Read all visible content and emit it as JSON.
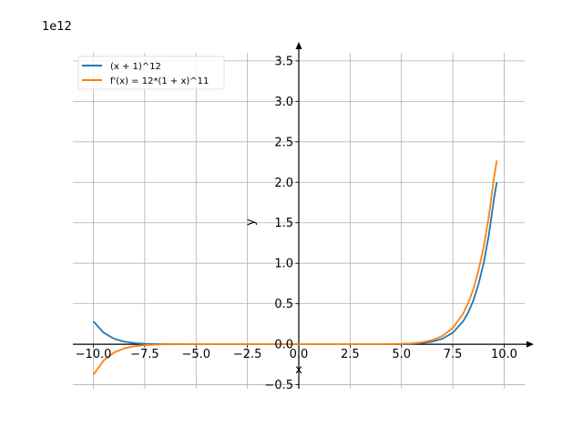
{
  "chart_data": {
    "type": "line",
    "xlabel": "x",
    "ylabel": "y",
    "offset_text": "1e12",
    "y_scale_factor": 1000000000000.0,
    "xlim": [
      -11.0,
      11.0
    ],
    "ylim": [
      -0.55,
      3.6
    ],
    "grid": true,
    "legend_position": "top-left",
    "x_ticks": [
      -10.0,
      -7.5,
      -5.0,
      -2.5,
      0.0,
      2.5,
      5.0,
      7.5,
      10.0
    ],
    "x_tick_labels": [
      "−10.0",
      "−7.5",
      "−5.0",
      "−2.5",
      "0.0",
      "2.5",
      "5.0",
      "7.5",
      "10.0"
    ],
    "y_ticks": [
      -0.5,
      0.0,
      0.5,
      1.0,
      1.5,
      2.0,
      2.5,
      3.0,
      3.5
    ],
    "y_tick_labels": [
      "−0.5",
      "0.0",
      "0.5",
      "1.0",
      "1.5",
      "2.0",
      "2.5",
      "3.0",
      "3.5"
    ],
    "series": [
      {
        "name": "(x + 1)^12",
        "color": "#1f77b4",
        "x": [
          -10,
          -9.5,
          -9,
          -8.5,
          -8,
          -7.5,
          -7,
          -6.5,
          -6,
          -5,
          -4,
          -3,
          -2,
          -1,
          0,
          1,
          2,
          3,
          4,
          5,
          5.5,
          6,
          6.5,
          7,
          7.5,
          8,
          8.25,
          8.5,
          8.75,
          9,
          9.25,
          9.5,
          9.64
        ],
        "y": [
          0.2824,
          0.1422,
          0.0687,
          0.0317,
          0.0138,
          0.0057,
          0.0022,
          0.0008,
          0.0003,
          0.0,
          0.0,
          0.0,
          0.0,
          0.0,
          0.0,
          0.0,
          0.0,
          0.0,
          0.0,
          0.0022,
          0.0057,
          0.0138,
          0.0317,
          0.0687,
          0.1422,
          0.2824,
          0.3918,
          0.5404,
          0.7406,
          1.0,
          1.3431,
          1.7901,
          2.0
        ]
      },
      {
        "name": "f'(x) = 12*(1 + x)^11",
        "color": "#ff7f0e",
        "x": [
          -10,
          -9.5,
          -9,
          -8.5,
          -8,
          -7.5,
          -7,
          -6.5,
          -6,
          -5,
          -4,
          -3,
          -2,
          -1,
          0,
          1,
          2,
          3,
          4,
          5,
          5.5,
          6,
          6.5,
          7,
          7.5,
          8,
          8.25,
          8.5,
          8.75,
          9,
          9.25,
          9.5,
          9.64
        ],
        "y": [
          -0.3766,
          -0.2007,
          -0.1031,
          -0.0507,
          -0.0237,
          -0.0105,
          -0.0044,
          -0.0017,
          -0.0006,
          -0.0001,
          0.0,
          0.0,
          0.0,
          0.0,
          0.0,
          0.0,
          0.0,
          0.0,
          0.0,
          0.0044,
          0.0105,
          0.0237,
          0.0507,
          0.1031,
          0.2007,
          0.3766,
          0.5082,
          0.6827,
          0.9116,
          1.2,
          1.5732,
          2.0458,
          2.27
        ]
      }
    ]
  }
}
